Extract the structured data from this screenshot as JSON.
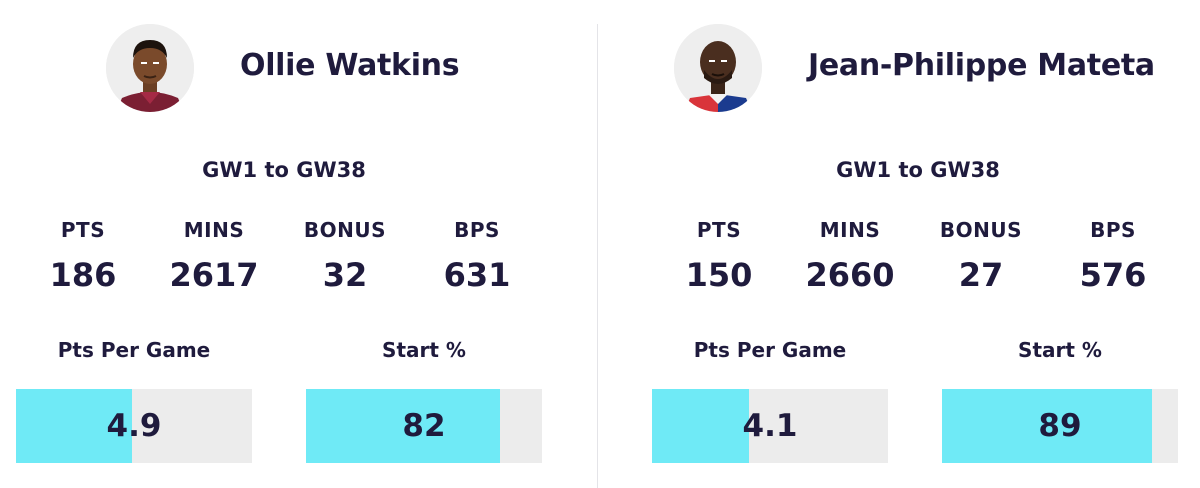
{
  "players": [
    {
      "name": "Ollie Watkins",
      "range": "GW1 to GW38",
      "stats": [
        {
          "label": "PTS",
          "value": "186"
        },
        {
          "label": "MINS",
          "value": "2617"
        },
        {
          "label": "BONUS",
          "value": "32"
        },
        {
          "label": "BPS",
          "value": "631"
        }
      ],
      "bars": [
        {
          "label": "Pts Per Game",
          "value": "4.9",
          "fill_fraction": 0.49
        },
        {
          "label": "Start %",
          "value": "82",
          "fill_fraction": 0.82
        }
      ],
      "kit_colors": [
        "#7b1f33",
        "#a52a45"
      ]
    },
    {
      "name": "Jean-Philippe Mateta",
      "range": "GW1 to GW38",
      "stats": [
        {
          "label": "PTS",
          "value": "150"
        },
        {
          "label": "MINS",
          "value": "2660"
        },
        {
          "label": "BONUS",
          "value": "27"
        },
        {
          "label": "BPS",
          "value": "576"
        }
      ],
      "bars": [
        {
          "label": "Pts Per Game",
          "value": "4.1",
          "fill_fraction": 0.41
        },
        {
          "label": "Start %",
          "value": "89",
          "fill_fraction": 0.89
        }
      ],
      "kit_colors": [
        "#d9343a",
        "#1b3b8f"
      ]
    }
  ],
  "colors": {
    "bar_fill": "#6feaf6",
    "bar_track": "#ececec",
    "text": "#1f1b3d"
  }
}
